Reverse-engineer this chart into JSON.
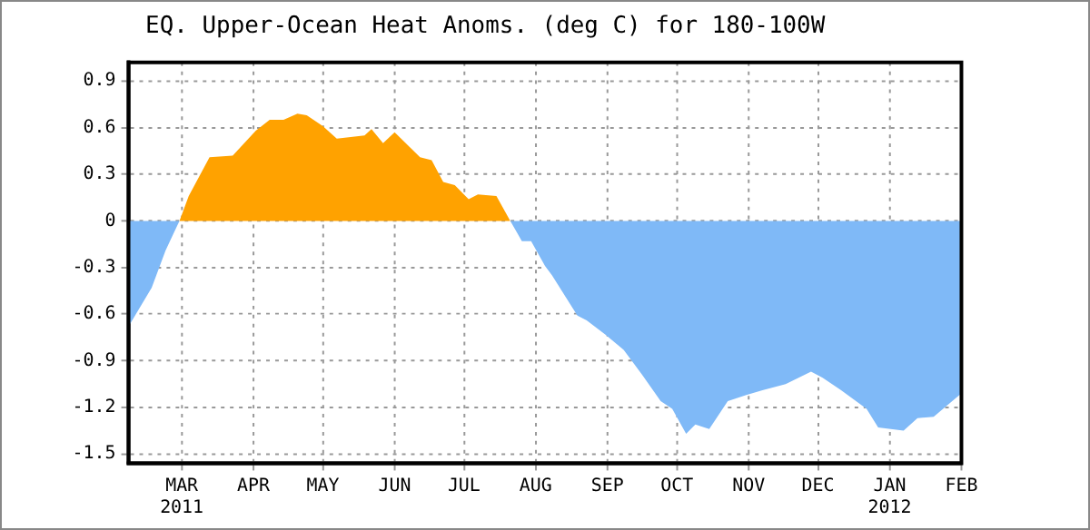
{
  "chart_data": {
    "type": "area",
    "title": "EQ. Upper-Ocean Heat Anoms. (deg C) for 180-100W",
    "x": [
      "2011-02-06",
      "2011-02-16",
      "2011-02-22",
      "2011-02-28",
      "2011-03-04",
      "2011-03-13",
      "2011-03-23",
      "2011-04-02",
      "2011-04-08",
      "2011-04-14",
      "2011-04-20",
      "2011-04-24",
      "2011-05-01",
      "2011-05-07",
      "2011-05-19",
      "2011-05-22",
      "2011-05-27",
      "2011-06-01",
      "2011-06-12",
      "2011-06-17",
      "2011-06-22",
      "2011-06-27",
      "2011-07-03",
      "2011-07-07",
      "2011-07-15",
      "2011-07-21",
      "2011-07-26",
      "2011-07-30",
      "2011-08-05",
      "2011-08-08",
      "2011-08-19",
      "2011-08-23",
      "2011-08-31",
      "2011-09-08",
      "2011-09-16",
      "2011-09-24",
      "2011-09-29",
      "2011-10-05",
      "2011-10-09",
      "2011-10-15",
      "2011-10-23",
      "2011-10-31",
      "2011-11-07",
      "2011-11-17",
      "2011-11-28",
      "2011-12-03",
      "2011-12-11",
      "2011-12-22",
      "2011-12-27",
      "2012-01-07",
      "2012-01-13",
      "2012-01-20",
      "2012-01-28",
      "2012-02-01"
    ],
    "series": [
      {
        "color": "#7fb9f7",
        "values": [
          -0.68,
          -0.43,
          -0.19,
          0,
          null,
          null,
          null,
          null,
          null,
          null,
          null,
          null,
          null,
          null,
          null,
          null,
          null,
          null,
          null,
          null,
          null,
          null,
          null,
          null,
          null,
          0,
          -0.13,
          -0.13,
          -0.29,
          -0.35,
          -0.61,
          -0.64,
          -0.73,
          -0.83,
          -0.99,
          -1.16,
          -1.21,
          -1.37,
          -1.31,
          -1.34,
          -1.16,
          -1.12,
          -1.09,
          -1.05,
          -0.97,
          -1.01,
          -1.09,
          -1.21,
          -1.33,
          -1.35,
          -1.27,
          -1.26,
          -1.16,
          -1.11
        ]
      },
      {
        "color": "#ffa200",
        "x": [
          "2011-02-28",
          "2011-03-04",
          "2011-03-13",
          "2011-03-23",
          "2011-04-02",
          "2011-04-08",
          "2011-04-14",
          "2011-04-20",
          "2011-04-24",
          "2011-05-01",
          "2011-05-07",
          "2011-05-19",
          "2011-05-22",
          "2011-05-27",
          "2011-06-01",
          "2011-06-12",
          "2011-06-17",
          "2011-06-22",
          "2011-06-27",
          "2011-07-03",
          "2011-07-07",
          "2011-07-15",
          "2011-07-21"
        ],
        "values": [
          0,
          0.16,
          0.41,
          0.42,
          0.58,
          0.65,
          0.65,
          0.69,
          0.68,
          0.61,
          0.53,
          0.55,
          0.59,
          0.5,
          0.57,
          0.41,
          0.39,
          0.25,
          0.23,
          0.14,
          0.17,
          0.16,
          0
        ]
      }
    ],
    "xlim": [
      "2011-02-06",
      "2012-02-01"
    ],
    "xticks": [
      {
        "value": "2011-03-01",
        "label": "MAR\n2011"
      },
      {
        "value": "2011-04-01",
        "label": "APR"
      },
      {
        "value": "2011-05-01",
        "label": "MAY"
      },
      {
        "value": "2011-06-01",
        "label": "JUN"
      },
      {
        "value": "2011-07-01",
        "label": "JUL"
      },
      {
        "value": "2011-08-01",
        "label": "AUG"
      },
      {
        "value": "2011-09-01",
        "label": "SEP"
      },
      {
        "value": "2011-10-01",
        "label": "OCT"
      },
      {
        "value": "2011-11-01",
        "label": "NOV"
      },
      {
        "value": "2011-12-01",
        "label": "DEC"
      },
      {
        "value": "2012-01-01",
        "label": "JAN\n2012"
      },
      {
        "value": "2012-02-01",
        "label": "FEB"
      }
    ],
    "ylim": [
      -1.56,
      1.02
    ],
    "yticks": [
      0.9,
      0.6,
      0.3,
      0,
      -0.3,
      -0.6,
      -0.9,
      -1.2,
      -1.5
    ],
    "grid": true,
    "legend": false
  }
}
